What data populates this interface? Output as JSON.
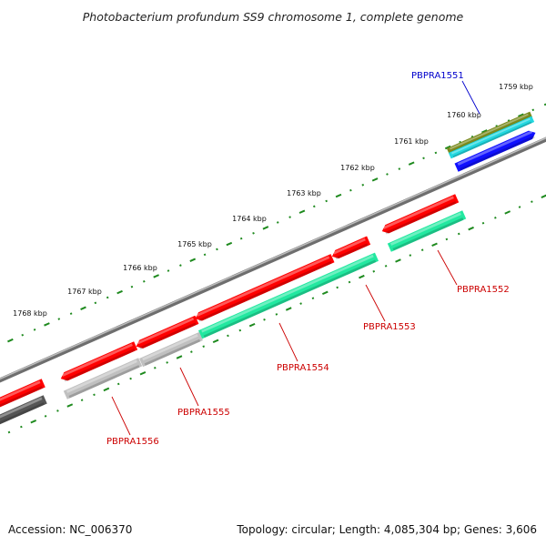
{
  "title": "Photobacterium profundum SS9 chromosome 1, complete genome",
  "footer": {
    "accession": "Accession: NC_006370",
    "summary": "Topology: circular; Length: 4,085,304 bp; Genes: 3,606"
  },
  "colors": {
    "forward_cds": "#ff0000",
    "reverse_cds_teal": "#22e8a0",
    "reverse_cds_grey": "#c0c0c0",
    "reverse_cds_dark": "#555555",
    "olive_feature": "#7a8a1e",
    "cyan_feature": "#22d8e0",
    "blue_feature": "#1010ff",
    "tick_color": "#1e8a1e",
    "backbone": "#8a8a8a",
    "label_red": "#cc0000",
    "label_blue": "#0000cc"
  },
  "ticks": [
    {
      "label": "1759 kbp"
    },
    {
      "label": "1760 kbp"
    },
    {
      "label": "1761 kbp"
    },
    {
      "label": "1762 kbp"
    },
    {
      "label": "1763 kbp"
    },
    {
      "label": "1764 kbp"
    },
    {
      "label": "1765 kbp"
    },
    {
      "label": "1766 kbp"
    },
    {
      "label": "1767 kbp"
    },
    {
      "label": "1768 kbp"
    }
  ],
  "genes": [
    {
      "name": "PBPRA1551",
      "strand": "forward",
      "color": "blue"
    },
    {
      "name": "PBPRA1552",
      "strand": "reverse",
      "color": "red"
    },
    {
      "name": "PBPRA1553",
      "strand": "reverse",
      "color": "red"
    },
    {
      "name": "PBPRA1554",
      "strand": "reverse",
      "color": "red"
    },
    {
      "name": "PBPRA1555",
      "strand": "reverse",
      "color": "red"
    },
    {
      "name": "PBPRA1556",
      "strand": "reverse",
      "color": "red"
    }
  ]
}
